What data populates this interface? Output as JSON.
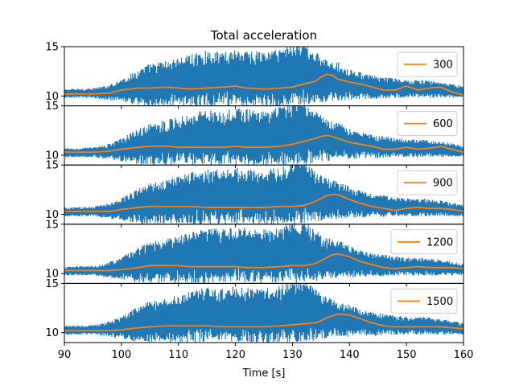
{
  "chart_data": {
    "type": "line",
    "title": "Total acceleration",
    "xlabel": "Time [s]",
    "xlim": [
      90,
      160
    ],
    "xticks": [
      90,
      100,
      110,
      120,
      130,
      140,
      150,
      160
    ],
    "ylim": [
      9,
      15
    ],
    "yticks": [
      10,
      15
    ],
    "grid": false,
    "legend_placement": "upper right",
    "colors": {
      "signal": "#1f77b4",
      "smoothed": "#ff7f0e"
    },
    "envelope_knots": {
      "x": [
        90,
        95,
        97,
        100,
        103,
        105,
        108,
        110,
        113,
        115,
        118,
        120,
        123,
        125,
        128,
        130,
        132,
        134,
        136,
        138,
        140,
        143,
        145,
        148,
        150,
        153,
        155,
        157,
        160
      ],
      "upper": [
        10.7,
        10.8,
        11.0,
        11.7,
        12.7,
        13.3,
        13.6,
        13.9,
        14.4,
        14.6,
        14.5,
        14.8,
        14.6,
        14.5,
        14.9,
        15.5,
        15.5,
        14.5,
        13.6,
        13.4,
        12.8,
        12.2,
        12.0,
        11.8,
        11.6,
        11.6,
        11.5,
        11.3,
        11.0
      ],
      "lower": [
        9.8,
        9.8,
        9.6,
        9.4,
        9.0,
        9.0,
        9.0,
        9.0,
        9.0,
        9.0,
        9.0,
        9.0,
        9.0,
        9.0,
        9.0,
        9.0,
        9.0,
        9.2,
        9.4,
        9.5,
        9.6,
        9.7,
        9.7,
        9.8,
        9.8,
        9.8,
        9.8,
        9.8,
        9.8
      ]
    },
    "panels": [
      {
        "label": "300",
        "series": [
          {
            "name": "300",
            "x": [
              90,
              95,
              98,
              100,
              103,
              105,
              108,
              110,
              112,
              115,
              118,
              120,
              122,
              125,
              128,
              130,
              132,
              134,
              135,
              136,
              137,
              138,
              140,
              142,
              144,
              146,
              148,
              150,
              152,
              154,
              156,
              158,
              160
            ],
            "y": [
              10.2,
              10.2,
              10.3,
              10.6,
              10.8,
              10.8,
              10.9,
              10.8,
              10.7,
              10.8,
              10.9,
              11.0,
              10.8,
              10.7,
              10.8,
              10.9,
              11.2,
              11.5,
              11.9,
              12.2,
              12.1,
              11.7,
              11.4,
              11.2,
              10.9,
              10.6,
              10.6,
              11.0,
              10.6,
              10.8,
              10.9,
              10.4,
              10.1
            ]
          }
        ]
      },
      {
        "label": "600",
        "series": [
          {
            "name": "600",
            "x": [
              90,
              95,
              98,
              100,
              103,
              105,
              108,
              110,
              112,
              115,
              118,
              120,
              122,
              125,
              128,
              130,
              132,
              134,
              135,
              136,
              137,
              138,
              140,
              142,
              144,
              146,
              148,
              150,
              152,
              154,
              156,
              158,
              160
            ],
            "y": [
              10.3,
              10.3,
              10.4,
              10.6,
              10.8,
              10.9,
              10.9,
              10.8,
              10.8,
              10.8,
              10.8,
              10.9,
              10.8,
              10.8,
              10.9,
              11.1,
              11.4,
              11.7,
              11.9,
              12.0,
              11.9,
              11.7,
              11.3,
              11.1,
              10.9,
              10.6,
              10.6,
              10.8,
              10.6,
              10.7,
              10.9,
              10.6,
              10.3
            ]
          }
        ]
      },
      {
        "label": "900",
        "series": [
          {
            "name": "900",
            "x": [
              90,
              95,
              98,
              100,
              103,
              105,
              108,
              110,
              112,
              115,
              118,
              120,
              122,
              125,
              128,
              130,
              132,
              134,
              135,
              136,
              137,
              138,
              140,
              142,
              144,
              146,
              148,
              150,
              152,
              154,
              156,
              158,
              160
            ],
            "y": [
              10.3,
              10.3,
              10.3,
              10.5,
              10.7,
              10.8,
              10.8,
              10.8,
              10.8,
              10.7,
              10.7,
              10.7,
              10.7,
              10.7,
              10.8,
              10.8,
              10.9,
              11.3,
              11.6,
              11.9,
              12.0,
              12.0,
              11.5,
              11.1,
              10.8,
              10.6,
              10.4,
              10.6,
              10.7,
              10.6,
              10.6,
              10.5,
              10.3
            ]
          }
        ]
      },
      {
        "label": "1200",
        "series": [
          {
            "name": "1200",
            "x": [
              90,
              95,
              98,
              100,
              103,
              105,
              108,
              110,
              112,
              115,
              118,
              120,
              122,
              125,
              128,
              130,
              132,
              134,
              135,
              136,
              137,
              138,
              140,
              142,
              144,
              146,
              148,
              150,
              152,
              154,
              156,
              158,
              160
            ],
            "y": [
              10.3,
              10.3,
              10.3,
              10.4,
              10.6,
              10.8,
              10.8,
              10.8,
              10.7,
              10.7,
              10.7,
              10.7,
              10.6,
              10.6,
              10.7,
              10.8,
              10.8,
              11.0,
              11.3,
              11.6,
              11.9,
              12.0,
              11.7,
              11.2,
              10.9,
              10.6,
              10.5,
              10.6,
              10.7,
              10.6,
              10.6,
              10.6,
              10.5
            ]
          }
        ]
      },
      {
        "label": "1500",
        "series": [
          {
            "name": "1500",
            "x": [
              90,
              95,
              98,
              100,
              103,
              105,
              108,
              110,
              112,
              115,
              118,
              120,
              122,
              125,
              128,
              130,
              132,
              134,
              135,
              136,
              137,
              138,
              140,
              142,
              144,
              146,
              148,
              150,
              152,
              154,
              156,
              158,
              160
            ],
            "y": [
              10.2,
              10.2,
              10.2,
              10.3,
              10.5,
              10.6,
              10.7,
              10.7,
              10.7,
              10.7,
              10.6,
              10.6,
              10.6,
              10.6,
              10.7,
              10.8,
              10.9,
              11.0,
              11.2,
              11.5,
              11.7,
              11.9,
              11.8,
              11.4,
              11.0,
              10.7,
              10.6,
              10.6,
              10.6,
              10.6,
              10.6,
              10.5,
              10.4
            ]
          }
        ]
      }
    ]
  }
}
